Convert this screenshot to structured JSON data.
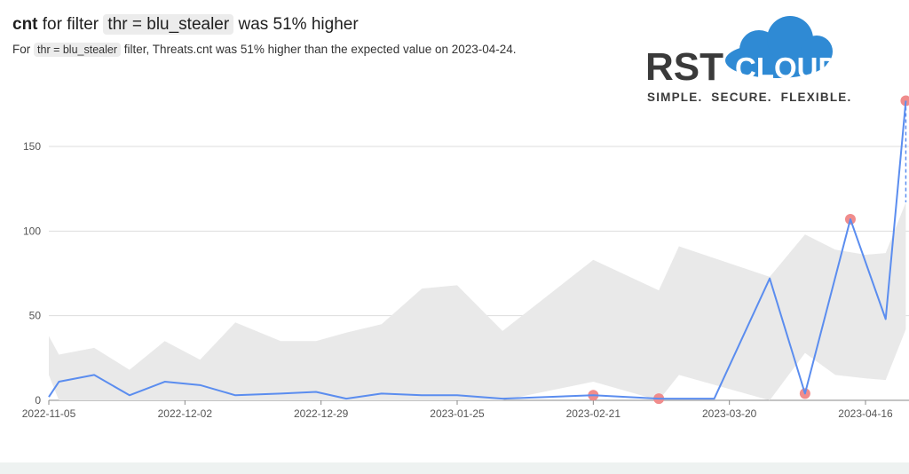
{
  "header": {
    "title_metric": "cnt",
    "title_pre": "for filter",
    "title_filter": "thr = blu_stealer",
    "title_post": "was 51% higher",
    "subtitle_pre": "For",
    "subtitle_filter": "thr = blu_stealer",
    "subtitle_post": "filter, Threats.cnt was 51% higher than the expected value on 2023-04-24."
  },
  "logo": {
    "word_left": "RST",
    "word_right": "CLOUD",
    "tagline": "SIMPLE.  SECURE.  FLEXIBLE.",
    "colors": {
      "dark": "#3a3a3a",
      "blue": "#2f8ad4"
    }
  },
  "colors": {
    "line": "#5b8def",
    "band": "#e9e9e9",
    "anomaly": "#f08c8c",
    "grid": "#dddddd",
    "axis": "#888888"
  },
  "chart_data": {
    "type": "line",
    "x_label": "",
    "y_label": "",
    "ylim": [
      0,
      175
    ],
    "y_ticks": [
      0,
      50,
      100,
      150
    ],
    "x_ticks": [
      "2022-11-05",
      "2022-12-02",
      "2022-12-29",
      "2023-01-25",
      "2023-02-21",
      "2023-03-20",
      "2023-04-16"
    ],
    "grid": true,
    "x": [
      "2022-11-05",
      "2022-11-07",
      "2022-11-14",
      "2022-11-21",
      "2022-11-28",
      "2022-12-05",
      "2022-12-12",
      "2022-12-21",
      "2022-12-28",
      "2023-01-03",
      "2023-01-10",
      "2023-01-18",
      "2023-01-25",
      "2023-02-03",
      "2023-02-21",
      "2023-03-06",
      "2023-03-17",
      "2023-03-28",
      "2023-04-04",
      "2023-04-13",
      "2023-04-20",
      "2023-04-24"
    ],
    "series": [
      {
        "values": [
          2,
          11,
          15,
          3,
          11,
          9,
          3,
          4,
          5,
          1,
          4,
          3,
          3,
          1,
          3,
          1,
          1,
          72,
          4,
          107,
          48,
          177
        ]
      }
    ],
    "expected_upper": [
      38,
      27,
      31,
      18,
      35,
      24,
      46,
      35,
      35,
      40,
      45,
      66,
      68,
      41,
      83,
      65,
      91,
      73,
      98,
      89,
      86,
      87,
      117
    ],
    "expected_lower": [
      15,
      0,
      0,
      0,
      0,
      0,
      0,
      0,
      0,
      0,
      0,
      0,
      0,
      0,
      11,
      0,
      15,
      0,
      28,
      15,
      13,
      12,
      42
    ],
    "band_x": [
      "2022-11-05",
      "2022-11-07",
      "2022-11-14",
      "2022-11-21",
      "2022-11-28",
      "2022-12-05",
      "2022-12-12",
      "2022-12-21",
      "2022-12-28",
      "2023-01-03",
      "2023-01-10",
      "2023-01-18",
      "2023-01-25",
      "2023-02-03",
      "2023-02-21",
      "2023-03-06",
      "2023-03-10",
      "2023-03-28",
      "2023-04-04",
      "2023-04-10",
      "2023-04-16",
      "2023-04-20",
      "2023-04-24"
    ],
    "anomalies": [
      {
        "x": "2023-02-21",
        "y": 3
      },
      {
        "x": "2023-03-06",
        "y": 1
      },
      {
        "x": "2023-04-04",
        "y": 4
      },
      {
        "x": "2023-04-13",
        "y": 107
      },
      {
        "x": "2023-04-24",
        "y": 177
      }
    ],
    "expected_at_last": 117
  }
}
